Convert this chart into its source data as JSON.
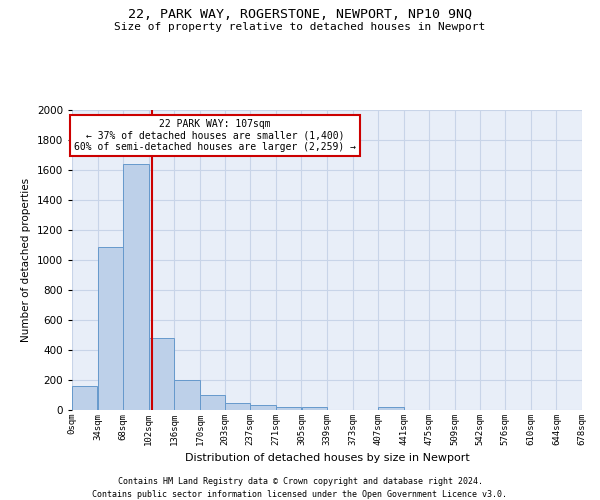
{
  "title": "22, PARK WAY, ROGERSTONE, NEWPORT, NP10 9NQ",
  "subtitle": "Size of property relative to detached houses in Newport",
  "xlabel": "Distribution of detached houses by size in Newport",
  "ylabel": "Number of detached properties",
  "annotation_line1": "22 PARK WAY: 107sqm",
  "annotation_line2": "← 37% of detached houses are smaller (1,400)",
  "annotation_line3": "60% of semi-detached houses are larger (2,259) →",
  "property_size_sqm": 107,
  "bin_edges": [
    0,
    34,
    68,
    102,
    136,
    170,
    203,
    237,
    271,
    305,
    339,
    373,
    407,
    441,
    475,
    509,
    542,
    576,
    610,
    644,
    678
  ],
  "bar_heights": [
    160,
    1090,
    1640,
    480,
    200,
    100,
    45,
    35,
    20,
    20,
    0,
    0,
    20,
    0,
    0,
    0,
    0,
    0,
    0,
    0
  ],
  "bar_color": "#bdd0e9",
  "bar_edge_color": "#6699cc",
  "red_line_color": "#cc0000",
  "box_edge_color": "#cc0000",
  "grid_color": "#c8d4e8",
  "background_color": "#e8eef8",
  "footer_line1": "Contains HM Land Registry data © Crown copyright and database right 2024.",
  "footer_line2": "Contains public sector information licensed under the Open Government Licence v3.0.",
  "ylim": [
    0,
    2000
  ],
  "yticks": [
    0,
    200,
    400,
    600,
    800,
    1000,
    1200,
    1400,
    1600,
    1800,
    2000
  ]
}
